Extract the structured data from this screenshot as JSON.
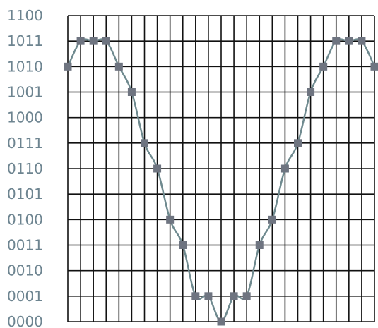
{
  "chart_data": {
    "type": "line",
    "title": "",
    "xlabel": "",
    "ylabel": "",
    "y_tick_labels": [
      "0000",
      "0001",
      "0010",
      "0011",
      "0100",
      "0101",
      "0110",
      "0111",
      "1000",
      "1001",
      "1010",
      "1011",
      "1100"
    ],
    "ylim": [
      0,
      12
    ],
    "x_grid_columns": 24,
    "grid": true,
    "legend": "none",
    "series": [
      {
        "x": [
          0,
          1,
          2,
          3,
          4,
          5,
          6,
          7,
          8,
          9,
          10,
          11,
          12,
          13,
          14,
          15,
          16,
          17,
          18,
          19,
          20,
          21,
          22,
          23,
          24
        ],
        "values": [
          10,
          11,
          11,
          11,
          10,
          9,
          7,
          6,
          4,
          3,
          1,
          1,
          0,
          1,
          1,
          3,
          4,
          6,
          7,
          9,
          10,
          11,
          11,
          11,
          10
        ]
      }
    ],
    "colors": {
      "grid": "#111111",
      "line": "#6f8a8f",
      "marker": "#6e7480",
      "tick_label": "#6d8490"
    }
  }
}
